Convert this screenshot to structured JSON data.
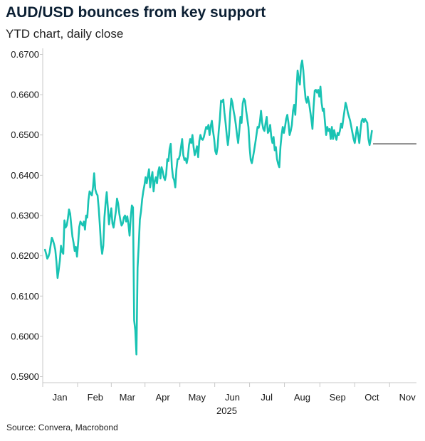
{
  "title": "AUD/USD bounces from key support",
  "subtitle": "YTD chart, daily close",
  "source": "Source: Convera, Macrobond",
  "colors": {
    "series": "#19c3b3",
    "support": "#555555",
    "axis": "#c8c8c8",
    "text": "#1a1a1a"
  },
  "chart_data": {
    "type": "line",
    "title": "AUD/USD bounces from key support",
    "subtitle": "YTD chart, daily close",
    "xlabel": "2025",
    "ylabel": "",
    "ylim": [
      0.5885,
      0.6715
    ],
    "y_ticks": [
      "0.5900",
      "0.6000",
      "0.6100",
      "0.6200",
      "0.6300",
      "0.6400",
      "0.6500",
      "0.6600",
      "0.6700"
    ],
    "x_ticks": [
      "Jan",
      "Feb",
      "Mar",
      "Apr",
      "May",
      "Jun",
      "Jul",
      "Aug",
      "Sep",
      "Oct",
      "Nov"
    ],
    "x_tick_days": [
      15,
      46,
      74,
      105,
      135,
      166,
      196,
      227,
      258,
      288,
      319
    ],
    "x_year_label": "2025",
    "x_range_days": [
      0,
      327
    ],
    "grid": false,
    "support_level": {
      "value": 0.6478,
      "from_day": 289,
      "to_day": 327
    },
    "series": [
      {
        "values": [
          [
            2,
            0.6215
          ],
          [
            3,
            0.6205
          ],
          [
            4,
            0.6193
          ],
          [
            5,
            0.6198
          ],
          [
            6,
            0.6208
          ],
          [
            7,
            0.6228
          ],
          [
            8,
            0.6245
          ],
          [
            9,
            0.6238
          ],
          [
            10,
            0.6228
          ],
          [
            11,
            0.6215
          ],
          [
            12,
            0.6185
          ],
          [
            13,
            0.6145
          ],
          [
            14,
            0.6165
          ],
          [
            15,
            0.6188
          ],
          [
            16,
            0.6225
          ],
          [
            17,
            0.621
          ],
          [
            18,
            0.6205
          ],
          [
            19,
            0.6288
          ],
          [
            20,
            0.627
          ],
          [
            21,
            0.6275
          ],
          [
            22,
            0.6292
          ],
          [
            23,
            0.6315
          ],
          [
            24,
            0.6305
          ],
          [
            25,
            0.6275
          ],
          [
            26,
            0.6248
          ],
          [
            27,
            0.6232
          ],
          [
            28,
            0.6212
          ],
          [
            29,
            0.6222
          ],
          [
            30,
            0.6198
          ],
          [
            31,
            0.6232
          ],
          [
            32,
            0.6272
          ],
          [
            33,
            0.6285
          ],
          [
            34,
            0.628
          ],
          [
            35,
            0.6275
          ],
          [
            36,
            0.6285
          ],
          [
            37,
            0.6265
          ],
          [
            38,
            0.63
          ],
          [
            39,
            0.6295
          ],
          [
            40,
            0.6338
          ],
          [
            41,
            0.636
          ],
          [
            42,
            0.6355
          ],
          [
            43,
            0.635
          ],
          [
            44,
            0.637
          ],
          [
            45,
            0.6405
          ],
          [
            46,
            0.6365
          ],
          [
            47,
            0.6355
          ],
          [
            48,
            0.635
          ],
          [
            49,
            0.6318
          ],
          [
            50,
            0.6275
          ],
          [
            51,
            0.6228
          ],
          [
            52,
            0.6205
          ],
          [
            53,
            0.6225
          ],
          [
            54,
            0.6295
          ],
          [
            55,
            0.633
          ],
          [
            56,
            0.6358
          ],
          [
            57,
            0.632
          ],
          [
            58,
            0.6278
          ],
          [
            59,
            0.63
          ],
          [
            60,
            0.6318
          ],
          [
            61,
            0.628
          ],
          [
            62,
            0.627
          ],
          [
            63,
            0.629
          ],
          [
            64,
            0.631
          ],
          [
            65,
            0.6342
          ],
          [
            66,
            0.633
          ],
          [
            67,
            0.6305
          ],
          [
            68,
            0.6288
          ],
          [
            69,
            0.6275
          ],
          [
            70,
            0.628
          ],
          [
            71,
            0.6295
          ],
          [
            72,
            0.63
          ],
          [
            73,
            0.6285
          ],
          [
            74,
            0.6298
          ],
          [
            75,
            0.6278
          ],
          [
            76,
            0.625
          ],
          [
            77,
            0.6295
          ],
          [
            78,
            0.6325
          ],
          [
            79,
            0.632
          ],
          [
            80,
            0.604
          ],
          [
            81,
            0.6015
          ],
          [
            82,
            0.5955
          ],
          [
            83,
            0.617
          ],
          [
            84,
            0.6225
          ],
          [
            85,
            0.629
          ],
          [
            86,
            0.631
          ],
          [
            87,
            0.634
          ],
          [
            88,
            0.636
          ],
          [
            89,
            0.6375
          ],
          [
            90,
            0.6395
          ],
          [
            91,
            0.638
          ],
          [
            92,
            0.6398
          ],
          [
            93,
            0.6415
          ],
          [
            94,
            0.637
          ],
          [
            95,
            0.6392
          ],
          [
            96,
            0.6408
          ],
          [
            97,
            0.636
          ],
          [
            98,
            0.6385
          ],
          [
            99,
            0.6395
          ],
          [
            100,
            0.638
          ],
          [
            101,
            0.6408
          ],
          [
            102,
            0.642
          ],
          [
            103,
            0.6392
          ],
          [
            104,
            0.642
          ],
          [
            105,
            0.641
          ],
          [
            106,
            0.6395
          ],
          [
            107,
            0.6388
          ],
          [
            108,
            0.6402
          ],
          [
            109,
            0.644
          ],
          [
            110,
            0.6435
          ],
          [
            111,
            0.6465
          ],
          [
            112,
            0.6478
          ],
          [
            113,
            0.642
          ],
          [
            114,
            0.6395
          ],
          [
            115,
            0.6388
          ],
          [
            116,
            0.637
          ],
          [
            117,
            0.6415
          ],
          [
            118,
            0.644
          ],
          [
            119,
            0.644
          ],
          [
            120,
            0.645
          ],
          [
            121,
            0.647
          ],
          [
            122,
            0.649
          ],
          [
            123,
            0.645
          ],
          [
            124,
            0.6438
          ],
          [
            125,
            0.6442
          ],
          [
            126,
            0.643
          ],
          [
            127,
            0.6445
          ],
          [
            128,
            0.6475
          ],
          [
            129,
            0.649
          ],
          [
            130,
            0.648
          ],
          [
            131,
            0.65
          ],
          [
            132,
            0.647
          ],
          [
            133,
            0.645
          ],
          [
            134,
            0.646
          ],
          [
            135,
            0.6472
          ],
          [
            136,
            0.6445
          ],
          [
            137,
            0.6485
          ],
          [
            138,
            0.65
          ],
          [
            139,
            0.649
          ],
          [
            140,
            0.6488
          ],
          [
            141,
            0.6495
          ],
          [
            142,
            0.6508
          ],
          [
            143,
            0.652
          ],
          [
            144,
            0.6515
          ],
          [
            145,
            0.6525
          ],
          [
            146,
            0.65
          ],
          [
            147,
            0.6522
          ],
          [
            148,
            0.6535
          ],
          [
            149,
            0.651
          ],
          [
            150,
            0.649
          ],
          [
            151,
            0.646
          ],
          [
            152,
            0.6452
          ],
          [
            153,
            0.647
          ],
          [
            154,
            0.651
          ],
          [
            155,
            0.654
          ],
          [
            156,
            0.6585
          ],
          [
            157,
            0.6582
          ],
          [
            158,
            0.6588
          ],
          [
            159,
            0.6555
          ],
          [
            160,
            0.653
          ],
          [
            161,
            0.65
          ],
          [
            162,
            0.6475
          ],
          [
            163,
            0.65
          ],
          [
            164,
            0.6555
          ],
          [
            165,
            0.659
          ],
          [
            166,
            0.658
          ],
          [
            167,
            0.656
          ],
          [
            168,
            0.6545
          ],
          [
            169,
            0.6525
          ],
          [
            170,
            0.65
          ],
          [
            171,
            0.648
          ],
          [
            172,
            0.651
          ],
          [
            173,
            0.6545
          ],
          [
            174,
            0.653
          ],
          [
            175,
            0.6578
          ],
          [
            176,
            0.659
          ],
          [
            177,
            0.6585
          ],
          [
            178,
            0.656
          ],
          [
            179,
            0.654
          ],
          [
            180,
            0.652
          ],
          [
            181,
            0.647
          ],
          [
            182,
            0.6438
          ],
          [
            183,
            0.643
          ],
          [
            184,
            0.6445
          ],
          [
            185,
            0.6462
          ],
          [
            186,
            0.648
          ],
          [
            187,
            0.65
          ],
          [
            188,
            0.652
          ],
          [
            189,
            0.6518
          ],
          [
            190,
            0.6532
          ],
          [
            191,
            0.656
          ],
          [
            192,
            0.653
          ],
          [
            193,
            0.6515
          ],
          [
            194,
            0.651
          ],
          [
            195,
            0.653
          ],
          [
            196,
            0.6545
          ],
          [
            197,
            0.6505
          ],
          [
            198,
            0.651
          ],
          [
            199,
            0.6525
          ],
          [
            200,
            0.6495
          ],
          [
            201,
            0.648
          ],
          [
            202,
            0.6495
          ],
          [
            203,
            0.6462
          ],
          [
            204,
            0.647
          ],
          [
            205,
            0.644
          ],
          [
            206,
            0.6428
          ],
          [
            207,
            0.642
          ],
          [
            208,
            0.647
          ],
          [
            209,
            0.65
          ],
          [
            210,
            0.652
          ],
          [
            211,
            0.6505
          ],
          [
            212,
            0.652
          ],
          [
            213,
            0.654
          ],
          [
            214,
            0.655
          ],
          [
            215,
            0.653
          ],
          [
            216,
            0.65
          ],
          [
            217,
            0.651
          ],
          [
            218,
            0.6525
          ],
          [
            219,
            0.656
          ],
          [
            220,
            0.6575
          ],
          [
            221,
            0.655
          ],
          [
            222,
            0.661
          ],
          [
            223,
            0.666
          ],
          [
            224,
            0.664
          ],
          [
            225,
            0.6625
          ],
          [
            226,
            0.6672
          ],
          [
            227,
            0.6685
          ],
          [
            228,
            0.666
          ],
          [
            229,
            0.662
          ],
          [
            230,
            0.659
          ],
          [
            231,
            0.658
          ],
          [
            232,
            0.6595
          ],
          [
            233,
            0.658
          ],
          [
            234,
            0.656
          ],
          [
            235,
            0.654
          ],
          [
            236,
            0.6515
          ],
          [
            237,
            0.657
          ],
          [
            238,
            0.661
          ],
          [
            239,
            0.6612
          ],
          [
            240,
            0.6605
          ],
          [
            241,
            0.6612
          ],
          [
            242,
            0.6595
          ],
          [
            243,
            0.662
          ],
          [
            244,
            0.658
          ],
          [
            245,
            0.656
          ],
          [
            246,
            0.6565
          ],
          [
            247,
            0.653
          ],
          [
            248,
            0.65
          ],
          [
            249,
            0.652
          ],
          [
            250,
            0.651
          ],
          [
            251,
            0.6515
          ],
          [
            252,
            0.649
          ],
          [
            253,
            0.652
          ],
          [
            254,
            0.649
          ],
          [
            255,
            0.6512
          ],
          [
            256,
            0.6498
          ],
          [
            257,
            0.6488
          ],
          [
            258,
            0.6505
          ],
          [
            259,
            0.65
          ],
          [
            260,
            0.651
          ],
          [
            261,
            0.6528
          ],
          [
            262,
            0.6518
          ],
          [
            263,
            0.654
          ],
          [
            264,
            0.656
          ],
          [
            265,
            0.658
          ],
          [
            266,
            0.657
          ],
          [
            267,
            0.6555
          ],
          [
            268,
            0.6545
          ],
          [
            269,
            0.6535
          ],
          [
            270,
            0.652
          ],
          [
            271,
            0.6505
          ],
          [
            272,
            0.649
          ],
          [
            273,
            0.648
          ],
          [
            274,
            0.65
          ],
          [
            275,
            0.652
          ],
          [
            276,
            0.65
          ],
          [
            277,
            0.648
          ],
          [
            278,
            0.651
          ],
          [
            279,
            0.6535
          ],
          [
            280,
            0.654
          ],
          [
            281,
            0.6532
          ],
          [
            282,
            0.654
          ],
          [
            283,
            0.6535
          ],
          [
            284,
            0.653
          ],
          [
            285,
            0.649
          ],
          [
            286,
            0.6475
          ],
          [
            287,
            0.649
          ],
          [
            288,
            0.651
          ]
        ]
      }
    ]
  }
}
